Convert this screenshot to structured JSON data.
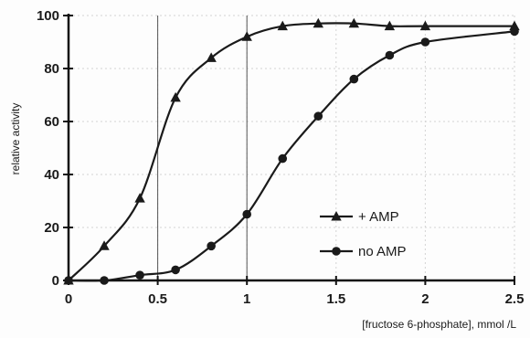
{
  "chart_data": {
    "type": "line",
    "title": "",
    "xlabel": "[fructose 6-phosphate], mmol /L",
    "ylabel": "relative activity",
    "xlim": [
      0,
      2.5
    ],
    "ylim": [
      0,
      100
    ],
    "x_ticks": [
      0,
      0.5,
      1,
      1.5,
      2,
      2.5
    ],
    "x_tick_labels": [
      "0",
      "0.5",
      "1",
      "1.5",
      "2",
      "2.5"
    ],
    "y_ticks": [
      0,
      20,
      40,
      60,
      80,
      100
    ],
    "y_tick_labels": [
      "0",
      "20",
      "40",
      "60",
      "80",
      "100"
    ],
    "grid": true,
    "legend_position": "center-right",
    "colors": {
      "line": "#1a1a1a",
      "grid": "#d4d4d4",
      "axis": "#111111"
    },
    "series": [
      {
        "name": "+ AMP",
        "marker": "triangle",
        "x": [
          0,
          0.2,
          0.4,
          0.6,
          0.8,
          1.0,
          1.2,
          1.4,
          1.6,
          1.8,
          2.0,
          2.5
        ],
        "y": [
          0,
          13,
          31,
          69,
          84,
          92,
          96,
          97,
          97,
          96,
          96,
          96
        ]
      },
      {
        "name": "no AMP",
        "marker": "circle",
        "x": [
          0,
          0.2,
          0.4,
          0.6,
          0.8,
          1.0,
          1.2,
          1.4,
          1.6,
          1.8,
          2.0,
          2.5
        ],
        "y": [
          0,
          0,
          2,
          4,
          13,
          25,
          46,
          62,
          76,
          85,
          90,
          94
        ]
      }
    ]
  }
}
